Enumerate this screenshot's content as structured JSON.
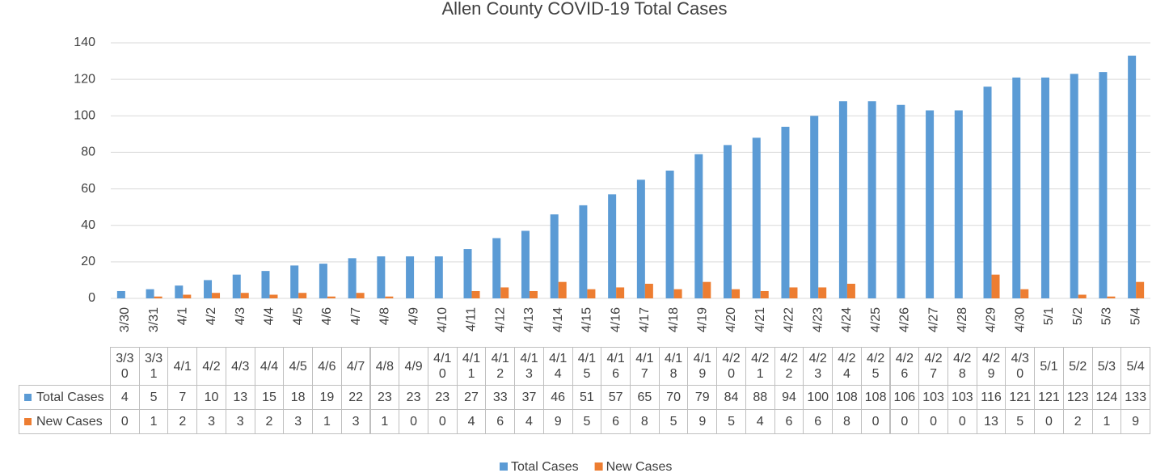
{
  "chart_data": {
    "type": "bar",
    "title": "Allen County COVID-19 Total Cases",
    "categories": [
      "3/30",
      "3/31",
      "4/1",
      "4/2",
      "4/3",
      "4/4",
      "4/5",
      "4/6",
      "4/7",
      "4/8",
      "4/9",
      "4/10",
      "4/11",
      "4/12",
      "4/13",
      "4/14",
      "4/15",
      "4/16",
      "4/17",
      "4/18",
      "4/19",
      "4/20",
      "4/21",
      "4/22",
      "4/23",
      "4/24",
      "4/25",
      "4/26",
      "4/27",
      "4/28",
      "4/29",
      "4/30",
      "5/1",
      "5/2",
      "5/3",
      "5/4"
    ],
    "series": [
      {
        "name": "Total Cases",
        "color": "#5b9bd5",
        "values": [
          4,
          5,
          7,
          10,
          13,
          15,
          18,
          19,
          22,
          23,
          23,
          23,
          27,
          33,
          37,
          46,
          51,
          57,
          65,
          70,
          79,
          84,
          88,
          94,
          100,
          108,
          108,
          106,
          103,
          103,
          116,
          121,
          121,
          123,
          124,
          133
        ]
      },
      {
        "name": "New Cases",
        "color": "#ed7d31",
        "values": [
          0,
          1,
          2,
          3,
          3,
          2,
          3,
          1,
          3,
          1,
          0,
          0,
          4,
          6,
          4,
          9,
          5,
          6,
          8,
          5,
          9,
          5,
          4,
          6,
          6,
          8,
          0,
          0,
          0,
          0,
          13,
          5,
          0,
          2,
          1,
          9
        ]
      }
    ],
    "ylim": [
      0,
      140
    ],
    "yticks": [
      0,
      20,
      40,
      60,
      80,
      100,
      120,
      140
    ],
    "grid": true,
    "legend": "bottom",
    "data_table": true
  }
}
